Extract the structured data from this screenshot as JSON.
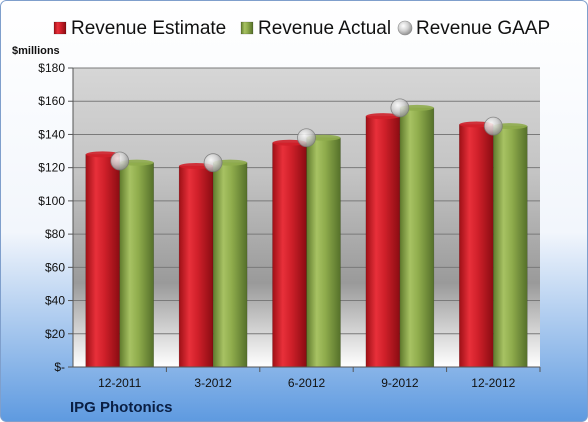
{
  "chart_data": {
    "type": "bar",
    "categories": [
      "12-2011",
      "3-2012",
      "6-2012",
      "9-2012",
      "12-2012"
    ],
    "series": [
      {
        "name": "Revenue Estimate",
        "kind": "bar",
        "color": "#d0202a",
        "values": [
          128,
          121,
          135,
          151,
          146
        ]
      },
      {
        "name": "Revenue Actual",
        "kind": "bar",
        "color": "#8fac4c",
        "values": [
          123,
          123,
          138,
          156,
          145
        ]
      },
      {
        "name": "Revenue GAAP",
        "kind": "marker",
        "color": "#b8b8b8",
        "values": [
          124,
          123,
          138,
          156,
          145
        ]
      }
    ],
    "ylabel": "$millions",
    "ylim": [
      0,
      180
    ],
    "yticks": [
      0,
      20,
      40,
      60,
      80,
      100,
      120,
      140,
      160,
      180
    ],
    "ytick_labels": [
      "$-",
      "$20",
      "$40",
      "$60",
      "$80",
      "$100",
      "$120",
      "$140",
      "$160",
      "$180"
    ],
    "grid": true,
    "legend_position": "top"
  },
  "company": "IPG Photonics",
  "colors": {
    "background_top": "#ffffff",
    "background_bottom": "#5e9ae0",
    "plot_top": "#d4d4d4",
    "plot_bottom": "#ffffff"
  }
}
